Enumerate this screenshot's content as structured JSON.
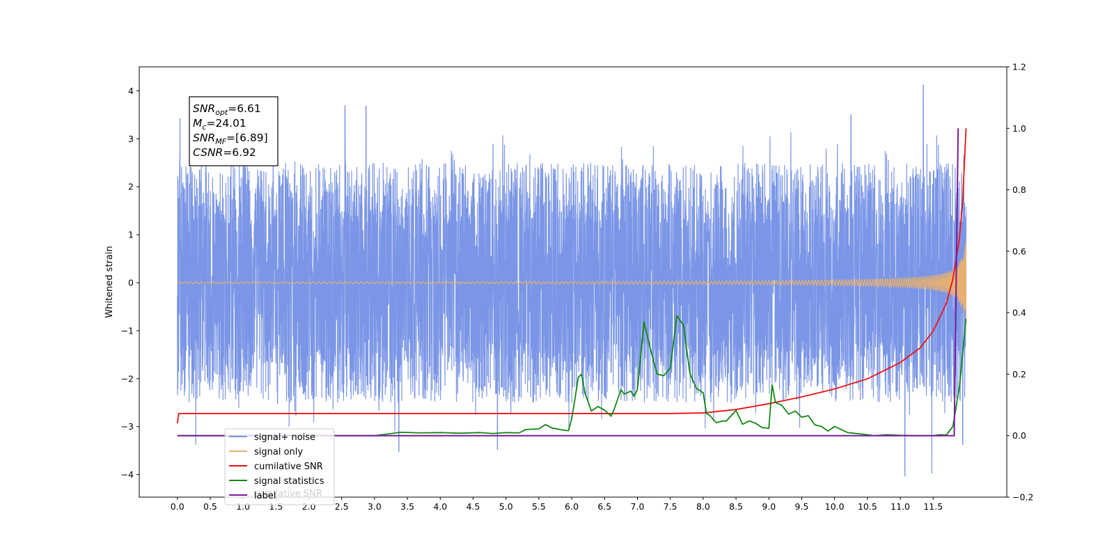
{
  "chart_data": {
    "type": "line",
    "ylabel": "Whitened strain",
    "xlim": [
      -0.58,
      12.62
    ],
    "ylim": [
      -4.47,
      4.5
    ],
    "y2lim": [
      -0.2,
      1.2
    ],
    "x_ticks": [
      "0.0",
      "0.5",
      "1.0",
      "1.5",
      "2.0",
      "2.5",
      "3.0",
      "3.5",
      "4.0",
      "4.5",
      "5.0",
      "5.5",
      "6.0",
      "6.5",
      "7.0",
      "7.5",
      "8.0",
      "8.5",
      "9.0",
      "9.5",
      "10.0",
      "10.5",
      "11.0",
      "11.5"
    ],
    "y_ticks": [
      "4",
      "3",
      "2",
      "1",
      "0",
      "−1",
      "−2",
      "−3",
      "−4"
    ],
    "y2_ticks": [
      "1.2",
      "1.0",
      "0.8",
      "0.6",
      "0.4",
      "0.2",
      "0.0",
      "−0.2"
    ],
    "annotation": {
      "lines": [
        {
          "sym": "SNR",
          "sub": "opt",
          "val": "=6.61"
        },
        {
          "sym": "M",
          "sub": "c",
          "val": "=24.01"
        },
        {
          "sym": "SNR",
          "sub": "MF",
          "val": "=[6.89]"
        },
        {
          "sym": "CSNR",
          "sub": "",
          "val": "=6.92"
        }
      ]
    },
    "series": [
      {
        "name": "signal+ noise",
        "axis": "left",
        "color": "#7b96e6",
        "style": "noise",
        "x_range": [
          0.0,
          12.0
        ],
        "envelope": [
          -2.5,
          2.6
        ],
        "peaks": [
          [
            0.04,
            3.43
          ],
          [
            0.28,
            -3.38
          ],
          [
            1.7,
            -3.0
          ],
          [
            2.55,
            3.69
          ],
          [
            2.87,
            3.68
          ],
          [
            3.37,
            -3.52
          ],
          [
            4.87,
            -3.48
          ],
          [
            10.25,
            3.5
          ],
          [
            11.07,
            -4.03
          ],
          [
            11.35,
            4.12
          ],
          [
            11.48,
            -3.98
          ],
          [
            11.95,
            -3.37
          ]
        ]
      },
      {
        "name": "signal only",
        "axis": "left",
        "color": "#e8b070",
        "style": "chirp",
        "x_range": [
          0.0,
          12.0
        ],
        "amplitude_end": 0.95
      },
      {
        "name": "cumilative SNR",
        "axis": "right",
        "color": "#ee1111",
        "style": "line",
        "points": [
          [
            0.0,
            0.04
          ],
          [
            0.02,
            0.072
          ],
          [
            1.0,
            0.072
          ],
          [
            3.0,
            0.072
          ],
          [
            5.0,
            0.072
          ],
          [
            7.0,
            0.072
          ],
          [
            7.5,
            0.072
          ],
          [
            8.0,
            0.074
          ],
          [
            8.5,
            0.085
          ],
          [
            9.0,
            0.104
          ],
          [
            9.5,
            0.126
          ],
          [
            10.0,
            0.152
          ],
          [
            10.5,
            0.185
          ],
          [
            11.0,
            0.238
          ],
          [
            11.3,
            0.285
          ],
          [
            11.5,
            0.34
          ],
          [
            11.7,
            0.43
          ],
          [
            11.8,
            0.51
          ],
          [
            11.9,
            0.64
          ],
          [
            11.95,
            0.77
          ],
          [
            12.0,
            1.0
          ]
        ]
      },
      {
        "name": "signal statistics",
        "axis": "right",
        "color": "#118811",
        "style": "line",
        "points": [
          [
            0.0,
            0.0
          ],
          [
            3.0,
            0.0
          ],
          [
            3.4,
            0.011
          ],
          [
            3.7,
            0.009
          ],
          [
            4.0,
            0.01
          ],
          [
            4.3,
            0.008
          ],
          [
            4.6,
            0.01
          ],
          [
            4.8,
            0.007
          ],
          [
            5.0,
            0.01
          ],
          [
            5.2,
            0.009
          ],
          [
            5.3,
            0.02
          ],
          [
            5.5,
            0.022
          ],
          [
            5.6,
            0.036
          ],
          [
            5.7,
            0.025
          ],
          [
            5.85,
            0.019
          ],
          [
            5.95,
            0.016
          ],
          [
            6.0,
            0.055
          ],
          [
            6.05,
            0.12
          ],
          [
            6.1,
            0.19
          ],
          [
            6.15,
            0.2
          ],
          [
            6.2,
            0.14
          ],
          [
            6.3,
            0.08
          ],
          [
            6.4,
            0.095
          ],
          [
            6.5,
            0.083
          ],
          [
            6.6,
            0.063
          ],
          [
            6.65,
            0.088
          ],
          [
            6.75,
            0.15
          ],
          [
            6.8,
            0.135
          ],
          [
            6.9,
            0.145
          ],
          [
            6.95,
            0.128
          ],
          [
            7.0,
            0.15
          ],
          [
            7.1,
            0.37
          ],
          [
            7.2,
            0.28
          ],
          [
            7.3,
            0.2
          ],
          [
            7.4,
            0.195
          ],
          [
            7.5,
            0.22
          ],
          [
            7.6,
            0.39
          ],
          [
            7.7,
            0.36
          ],
          [
            7.8,
            0.2
          ],
          [
            7.9,
            0.153
          ],
          [
            8.0,
            0.14
          ],
          [
            8.05,
            0.072
          ],
          [
            8.1,
            0.066
          ],
          [
            8.2,
            0.042
          ],
          [
            8.3,
            0.048
          ],
          [
            8.35,
            0.047
          ],
          [
            8.5,
            0.082
          ],
          [
            8.6,
            0.037
          ],
          [
            8.7,
            0.048
          ],
          [
            8.8,
            0.04
          ],
          [
            8.9,
            0.026
          ],
          [
            9.0,
            0.024
          ],
          [
            9.05,
            0.165
          ],
          [
            9.1,
            0.108
          ],
          [
            9.2,
            0.098
          ],
          [
            9.3,
            0.07
          ],
          [
            9.4,
            0.08
          ],
          [
            9.5,
            0.06
          ],
          [
            9.6,
            0.065
          ],
          [
            9.7,
            0.035
          ],
          [
            9.8,
            0.03
          ],
          [
            9.9,
            0.015
          ],
          [
            10.0,
            0.03
          ],
          [
            10.1,
            0.02
          ],
          [
            10.2,
            0.01
          ],
          [
            10.5,
            0.003
          ],
          [
            10.6,
            0.0
          ],
          [
            10.8,
            0.003
          ],
          [
            11.0,
            0.001
          ],
          [
            11.2,
            0.0
          ],
          [
            11.5,
            0.0
          ],
          [
            11.6,
            0.003
          ],
          [
            11.7,
            0.002
          ],
          [
            11.8,
            0.03
          ],
          [
            11.9,
            0.16
          ],
          [
            12.0,
            0.38
          ]
        ]
      },
      {
        "name": "label",
        "axis": "right",
        "color": "#7a1a9a",
        "style": "step",
        "points": [
          [
            0.0,
            0.0
          ],
          [
            11.82,
            0.0
          ],
          [
            11.88,
            1.0
          ]
        ]
      }
    ],
    "legend": {
      "placement": "lower-left",
      "entries": [
        "signal+ noise",
        "signal only",
        "cumilative SNR",
        "signal statistics",
        "label"
      ],
      "overlap_text": "cumilative SNR"
    }
  }
}
